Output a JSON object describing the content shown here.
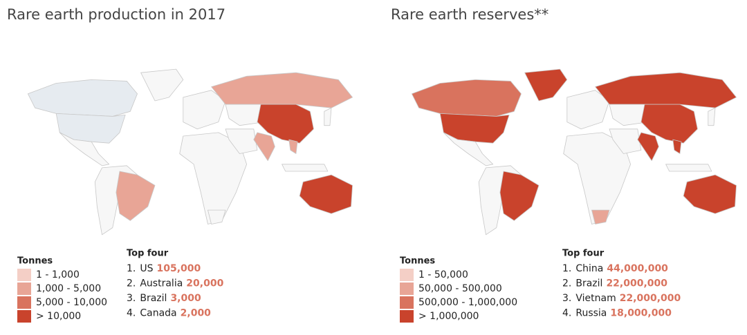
{
  "panels": [
    {
      "title": "Rare earth production in 2017",
      "legend": {
        "title": "Tonnes",
        "colors": [
          "#f4cfc6",
          "#e8a596",
          "#d9735e",
          "#c9432c"
        ],
        "items": [
          "1 - 1,000",
          "1,000 - 5,000",
          "5,000 - 10,000",
          "> 10,000"
        ]
      },
      "top": {
        "title": "Top four",
        "items": [
          {
            "rank": "1.",
            "name": "US",
            "value": "105,000"
          },
          {
            "rank": "2.",
            "name": "Australia",
            "value": "20,000"
          },
          {
            "rank": "3.",
            "name": "Brazil",
            "value": "3,000"
          },
          {
            "rank": "4.",
            "name": "Canada",
            "value": "2,000"
          }
        ]
      }
    },
    {
      "title": "Rare earth reserves**",
      "legend": {
        "title": "Tonnes",
        "colors": [
          "#f4cfc6",
          "#e8a596",
          "#d9735e",
          "#c9432c"
        ],
        "items": [
          "1 - 50,000",
          "50,000 - 500,000",
          "500,000 - 1,000,000",
          "> 1,000,000"
        ]
      },
      "top": {
        "title": "Top four",
        "items": [
          {
            "rank": "1.",
            "name": "China",
            "value": "44,000,000"
          },
          {
            "rank": "2.",
            "name": "Brazil",
            "value": "22,000,000"
          },
          {
            "rank": "3.",
            "name": "Vietnam",
            "value": "22,000,000"
          },
          {
            "rank": "4.",
            "name": "Russia",
            "value": "18,000,000"
          }
        ]
      }
    }
  ]
}
